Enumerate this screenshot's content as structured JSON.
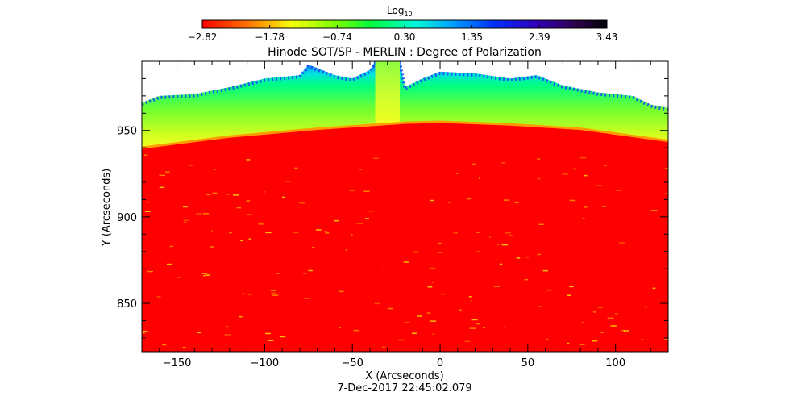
{
  "chart_data": {
    "type": "heatmap",
    "title": "Hinode SOT/SP - MERLIN : Degree of Polarization",
    "xlabel": "X (Arcseconds)",
    "ylabel": "Y (Arcseconds)",
    "timestamp": "7-Dec-2017 22:45:02.079",
    "xlim": [
      -170,
      130
    ],
    "ylim": [
      822,
      990
    ],
    "x_ticks": [
      -150,
      -100,
      -50,
      0,
      50,
      100
    ],
    "y_ticks": [
      850,
      900,
      950
    ],
    "colorbar": {
      "title": "Log",
      "title_subscript": "10",
      "colormap": "rainbow",
      "range": [
        -2.82,
        3.43
      ],
      "tick_labels": [
        "-2.82",
        "-1.78",
        "-0.74",
        "0.30",
        "1.35",
        "2.39",
        "3.43"
      ]
    },
    "limb": {
      "description_values": "solar limb edge (arcsec)",
      "x": [
        -170,
        -120,
        -70,
        -20,
        0,
        40,
        80,
        130
      ],
      "y": [
        940,
        946.5,
        951,
        954.5,
        955,
        953.5,
        951,
        944
      ]
    },
    "off_limb_upper_edge": {
      "x": [
        -170,
        -160,
        -140,
        -120,
        -100,
        -80,
        -75,
        -60,
        -50,
        -40,
        -37,
        -23,
        -20,
        -10,
        0,
        20,
        40,
        55,
        70,
        90,
        110,
        120,
        130
      ],
      "y": [
        966,
        970,
        971,
        975,
        980,
        982,
        988,
        982,
        980,
        985,
        990,
        990,
        975,
        980,
        984,
        983,
        980,
        982,
        976,
        972,
        970,
        965,
        963
      ]
    },
    "vertical_band": {
      "x_range": [
        -37,
        -23
      ],
      "y_top": 990
    }
  }
}
